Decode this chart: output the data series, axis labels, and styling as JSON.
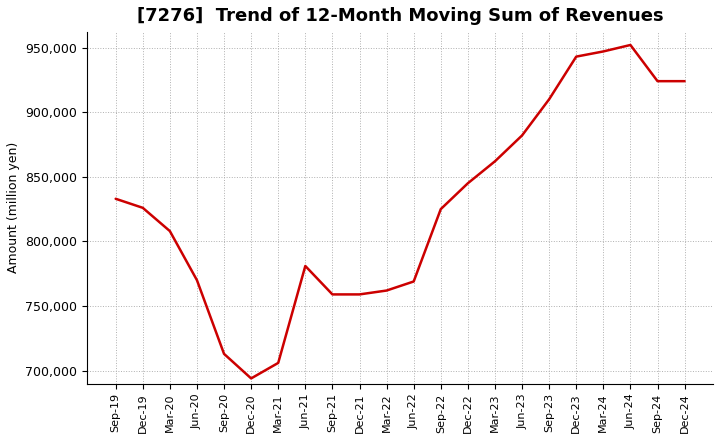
{
  "title": "[7276]  Trend of 12-Month Moving Sum of Revenues",
  "ylabel": "Amount (million yen)",
  "line_color": "#cc0000",
  "background_color": "#ffffff",
  "plot_bg_color": "#ffffff",
  "grid_color": "#b0b0b0",
  "ylim": [
    690000,
    962000
  ],
  "yticks": [
    700000,
    750000,
    800000,
    850000,
    900000,
    950000
  ],
  "x_labels": [
    "Sep-19",
    "Dec-19",
    "Mar-20",
    "Jun-20",
    "Sep-20",
    "Dec-20",
    "Mar-21",
    "Jun-21",
    "Sep-21",
    "Dec-21",
    "Mar-22",
    "Jun-22",
    "Sep-22",
    "Dec-22",
    "Mar-23",
    "Jun-23",
    "Sep-23",
    "Dec-23",
    "Mar-24",
    "Jun-24",
    "Sep-24",
    "Dec-24"
  ],
  "values": [
    833000,
    826000,
    808000,
    770000,
    713000,
    694000,
    706000,
    781000,
    759000,
    759000,
    762000,
    769000,
    825000,
    845000,
    862000,
    882000,
    910000,
    943000,
    947000,
    952000,
    924000,
    924000
  ],
  "title_fontsize": 13,
  "ylabel_fontsize": 9,
  "tick_fontsize": 9,
  "xtick_fontsize": 8
}
